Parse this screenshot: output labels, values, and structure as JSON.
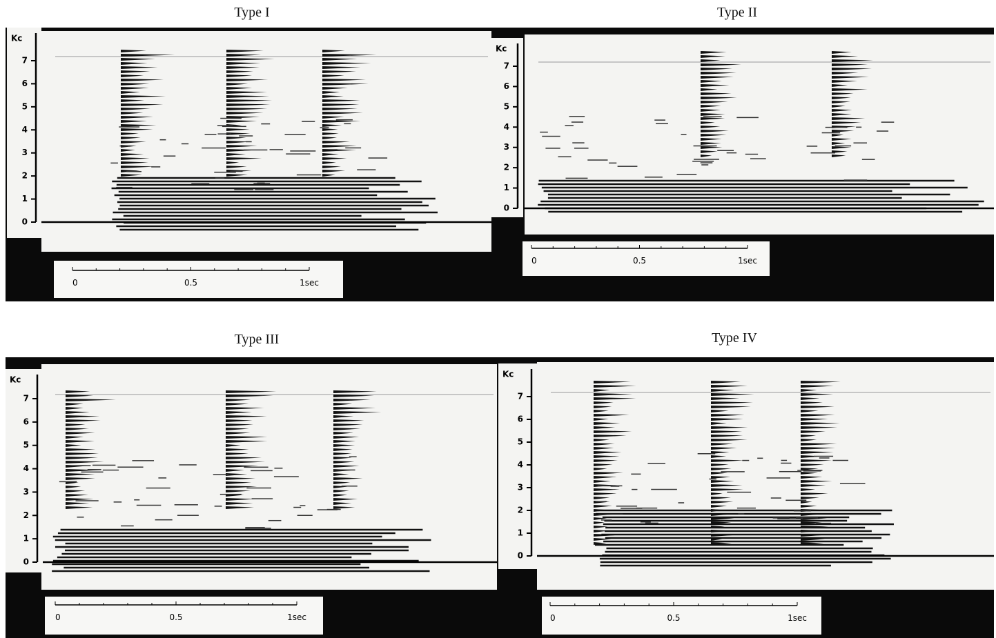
{
  "panels": [
    {
      "title": "Type I",
      "freq_unit": "Kc",
      "freq_labels": [
        "0",
        "1",
        "2",
        "3",
        "4",
        "5",
        "6",
        "7"
      ],
      "time_labels": [
        "0",
        "0.5",
        "1sec"
      ]
    },
    {
      "title": "Type II",
      "freq_unit": "Kc",
      "freq_labels": [
        "0",
        "1",
        "2",
        "3",
        "4",
        "5",
        "6",
        "7"
      ],
      "time_labels": [
        "0",
        "0.5",
        "1sec"
      ]
    },
    {
      "title": "Type III",
      "freq_unit": "Kc",
      "freq_labels": [
        "0",
        "1",
        "2",
        "3",
        "4",
        "5",
        "6",
        "7"
      ],
      "time_labels": [
        "0",
        "0.5",
        "1sec"
      ]
    },
    {
      "title": "Type IV",
      "freq_unit": "Kc",
      "freq_labels": [
        "0",
        "1",
        "2",
        "3",
        "4",
        "5",
        "6",
        "7"
      ],
      "time_labels": [
        "0",
        "0.5",
        "1sec"
      ]
    }
  ]
}
